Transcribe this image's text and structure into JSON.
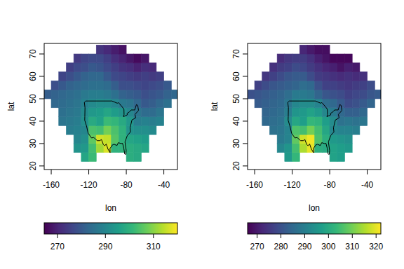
{
  "chart_data": [
    {
      "type": "heatmap",
      "color": "viridis",
      "x_label": "lon",
      "y_label": "lat",
      "xlim": [
        -167.5,
        -25.5
      ],
      "ylim": [
        18.4,
        74.7
      ],
      "xticks": [
        -160,
        -120,
        -80,
        -40
      ],
      "yticks": [
        20,
        30,
        40,
        50,
        60,
        70
      ],
      "x": [
        -164,
        -156,
        -148,
        -140,
        -132,
        -124,
        -116,
        -108,
        -100,
        -92,
        -84,
        -76,
        -68,
        -60,
        -52,
        -44,
        -36,
        -28
      ],
      "y": [
        20,
        24,
        28,
        32,
        36,
        40,
        44,
        48,
        52,
        56,
        60,
        64,
        68,
        72
      ],
      "values": [
        [
          null,
          null,
          null,
          null,
          null,
          null,
          null,
          null,
          null,
          null,
          null,
          null,
          null,
          null,
          null,
          null,
          null,
          null
        ],
        [
          null,
          null,
          null,
          null,
          null,
          297,
          302,
          null,
          null,
          null,
          null,
          299,
          298,
          null,
          null,
          null,
          null,
          null
        ],
        [
          null,
          null,
          null,
          null,
          293,
          294,
          303,
          312,
          317,
          300,
          300,
          299,
          298,
          297,
          null,
          null,
          null,
          null
        ],
        [
          null,
          null,
          null,
          null,
          290,
          292,
          306,
          316,
          315,
          305,
          300,
          297,
          296,
          295,
          null,
          null,
          null,
          null
        ],
        [
          null,
          null,
          null,
          288,
          289,
          290,
          304,
          303,
          308,
          304,
          300,
          293,
          292,
          292,
          291,
          null,
          null,
          null
        ],
        [
          null,
          null,
          286,
          287,
          288,
          292,
          298,
          296,
          302,
          301,
          298,
          294,
          288,
          289,
          288,
          289,
          null,
          null
        ],
        [
          null,
          null,
          285,
          286,
          287,
          291,
          294,
          295,
          297,
          295,
          293,
          290,
          286,
          284,
          284,
          286,
          null,
          null
        ],
        [
          null,
          283,
          284,
          285,
          286,
          289,
          291,
          292,
          292,
          290,
          287,
          286,
          283,
          280,
          281,
          283,
          285,
          null
        ],
        [
          281,
          282,
          283,
          284,
          285,
          287,
          288,
          288,
          287,
          285,
          282,
          281,
          280,
          278,
          279,
          280,
          282,
          283
        ],
        [
          null,
          278,
          280,
          282,
          283,
          284,
          285,
          285,
          284,
          281,
          278,
          278,
          277,
          276,
          277,
          278,
          280,
          null
        ],
        [
          null,
          null,
          276,
          278,
          280,
          282,
          283,
          283,
          280,
          277,
          276,
          275,
          274,
          275,
          274,
          275,
          null,
          null
        ],
        [
          null,
          null,
          null,
          275,
          277,
          278,
          280,
          279,
          277,
          275,
          273,
          272,
          270,
          272,
          271,
          null,
          null,
          null
        ],
        [
          null,
          null,
          null,
          null,
          274,
          276,
          277,
          277,
          275,
          272,
          270,
          268,
          266,
          268,
          null,
          null,
          null,
          null
        ],
        [
          null,
          null,
          null,
          null,
          null,
          null,
          null,
          273,
          271,
          269,
          267,
          null,
          null,
          null,
          null,
          null,
          null,
          null
        ]
      ],
      "colorbar": {
        "range": [
          264.5,
          320
        ],
        "ticks": [
          270,
          290,
          310
        ]
      },
      "outline": [
        [
          -124.7,
          48.4
        ],
        [
          -124,
          46
        ],
        [
          -124.2,
          42
        ],
        [
          -124.3,
          40.4
        ],
        [
          -122.4,
          37.8
        ],
        [
          -120.6,
          34.6
        ],
        [
          -117.1,
          32.5
        ],
        [
          -114.7,
          32.7
        ],
        [
          -111,
          31.3
        ],
        [
          -108.2,
          31.3
        ],
        [
          -106.5,
          31.8
        ],
        [
          -104.5,
          29.6
        ],
        [
          -103,
          29
        ],
        [
          -101.4,
          29.8
        ],
        [
          -99.5,
          27.5
        ],
        [
          -97.2,
          25.9
        ],
        [
          -97.4,
          27.8
        ],
        [
          -94.7,
          29.4
        ],
        [
          -93,
          29.7
        ],
        [
          -90,
          29.1
        ],
        [
          -88.5,
          30.4
        ],
        [
          -85.5,
          30
        ],
        [
          -84,
          30.1
        ],
        [
          -82.7,
          28
        ],
        [
          -81.7,
          25.3
        ],
        [
          -80.4,
          25.2
        ],
        [
          -80.1,
          27
        ],
        [
          -81.4,
          30.7
        ],
        [
          -79,
          33.5
        ],
        [
          -75.5,
          35.2
        ],
        [
          -76,
          37
        ],
        [
          -74,
          40.5
        ],
        [
          -70,
          41.5
        ],
        [
          -70.7,
          43
        ],
        [
          -67,
          44.8
        ],
        [
          -67.8,
          47
        ],
        [
          -69.2,
          47.4
        ],
        [
          -71,
          45
        ],
        [
          -74.8,
          45
        ],
        [
          -76.5,
          44.2
        ],
        [
          -79.2,
          43.4
        ],
        [
          -79,
          42.8
        ],
        [
          -83,
          42
        ],
        [
          -82.4,
          43
        ],
        [
          -82.5,
          45.3
        ],
        [
          -84.6,
          46.5
        ],
        [
          -88.4,
          48.3
        ],
        [
          -89.6,
          48
        ],
        [
          -95.2,
          49
        ],
        [
          -123,
          49
        ],
        [
          -124.7,
          48.4
        ]
      ]
    },
    {
      "type": "heatmap",
      "color": "viridis",
      "x_label": "lon",
      "y_label": "lat",
      "xlim": [
        -167.5,
        -25.5
      ],
      "ylim": [
        18.4,
        74.7
      ],
      "xticks": [
        -160,
        -120,
        -80,
        -40
      ],
      "yticks": [
        20,
        30,
        40,
        50,
        60,
        70
      ],
      "x": [
        -164,
        -156,
        -148,
        -140,
        -132,
        -124,
        -116,
        -108,
        -100,
        -92,
        -84,
        -76,
        -68,
        -60,
        -52,
        -44,
        -36,
        -28
      ],
      "y": [
        20,
        24,
        28,
        32,
        36,
        40,
        44,
        48,
        52,
        56,
        60,
        64,
        68,
        72
      ],
      "values": [
        [
          null,
          null,
          null,
          null,
          null,
          null,
          null,
          null,
          null,
          null,
          null,
          null,
          null,
          null,
          null,
          null,
          null,
          null
        ],
        [
          null,
          null,
          null,
          null,
          null,
          296,
          303,
          null,
          null,
          null,
          null,
          298,
          297,
          null,
          null,
          null,
          null,
          null
        ],
        [
          null,
          null,
          null,
          null,
          292,
          295,
          305,
          315,
          320,
          301,
          300,
          298,
          297,
          296,
          null,
          null,
          null,
          null
        ],
        [
          null,
          null,
          null,
          null,
          289,
          291,
          308,
          318,
          321,
          306,
          301,
          296,
          295,
          294,
          null,
          null,
          null,
          null
        ],
        [
          null,
          null,
          null,
          287,
          288,
          291,
          306,
          305,
          310,
          305,
          299,
          292,
          291,
          291,
          290,
          null,
          null,
          null
        ],
        [
          null,
          null,
          285,
          286,
          287,
          293,
          299,
          297,
          303,
          302,
          297,
          293,
          287,
          288,
          287,
          288,
          null,
          null
        ],
        [
          null,
          null,
          284,
          285,
          286,
          290,
          295,
          296,
          298,
          296,
          292,
          289,
          285,
          283,
          283,
          285,
          null,
          null
        ],
        [
          null,
          282,
          283,
          284,
          285,
          288,
          292,
          293,
          293,
          291,
          286,
          285,
          282,
          279,
          280,
          282,
          284,
          null
        ],
        [
          280,
          281,
          282,
          283,
          284,
          286,
          289,
          289,
          288,
          284,
          281,
          280,
          279,
          277,
          278,
          279,
          281,
          282
        ],
        [
          null,
          277,
          279,
          281,
          282,
          283,
          284,
          286,
          285,
          280,
          277,
          277,
          276,
          275,
          276,
          277,
          279,
          null
        ],
        [
          null,
          null,
          275,
          277,
          279,
          281,
          282,
          282,
          279,
          276,
          275,
          274,
          273,
          274,
          273,
          274,
          null,
          null
        ],
        [
          null,
          null,
          null,
          274,
          276,
          277,
          279,
          278,
          276,
          274,
          272,
          271,
          269,
          271,
          270,
          null,
          null,
          null
        ],
        [
          null,
          null,
          null,
          null,
          273,
          275,
          276,
          276,
          274,
          271,
          269,
          267,
          267,
          267,
          null,
          null,
          null,
          null
        ],
        [
          null,
          null,
          null,
          null,
          null,
          null,
          null,
          272,
          270,
          268,
          268,
          null,
          null,
          null,
          null,
          null,
          null,
          null
        ]
      ],
      "colorbar": {
        "range": [
          266,
          322
        ],
        "ticks": [
          270,
          280,
          290,
          300,
          310,
          320
        ]
      },
      "outline": [
        [
          -124.7,
          48.4
        ],
        [
          -124,
          46
        ],
        [
          -124.2,
          42
        ],
        [
          -124.3,
          40.4
        ],
        [
          -122.4,
          37.8
        ],
        [
          -120.6,
          34.6
        ],
        [
          -117.1,
          32.5
        ],
        [
          -114.7,
          32.7
        ],
        [
          -111,
          31.3
        ],
        [
          -108.2,
          31.3
        ],
        [
          -106.5,
          31.8
        ],
        [
          -104.5,
          29.6
        ],
        [
          -103,
          29
        ],
        [
          -101.4,
          29.8
        ],
        [
          -99.5,
          27.5
        ],
        [
          -97.2,
          25.9
        ],
        [
          -97.4,
          27.8
        ],
        [
          -94.7,
          29.4
        ],
        [
          -93,
          29.7
        ],
        [
          -90,
          29.1
        ],
        [
          -88.5,
          30.4
        ],
        [
          -85.5,
          30
        ],
        [
          -84,
          30.1
        ],
        [
          -82.7,
          28
        ],
        [
          -81.7,
          25.3
        ],
        [
          -80.4,
          25.2
        ],
        [
          -80.1,
          27
        ],
        [
          -81.4,
          30.7
        ],
        [
          -79,
          33.5
        ],
        [
          -75.5,
          35.2
        ],
        [
          -76,
          37
        ],
        [
          -74,
          40.5
        ],
        [
          -70,
          41.5
        ],
        [
          -70.7,
          43
        ],
        [
          -67,
          44.8
        ],
        [
          -67.8,
          47
        ],
        [
          -69.2,
          47.4
        ],
        [
          -71,
          45
        ],
        [
          -74.8,
          45
        ],
        [
          -76.5,
          44.2
        ],
        [
          -79.2,
          43.4
        ],
        [
          -79,
          42.8
        ],
        [
          -83,
          42
        ],
        [
          -82.4,
          43
        ],
        [
          -82.5,
          45.3
        ],
        [
          -84.6,
          46.5
        ],
        [
          -88.4,
          48.3
        ],
        [
          -89.6,
          48
        ],
        [
          -95.2,
          49
        ],
        [
          -123,
          49
        ],
        [
          -124.7,
          48.4
        ]
      ]
    }
  ]
}
